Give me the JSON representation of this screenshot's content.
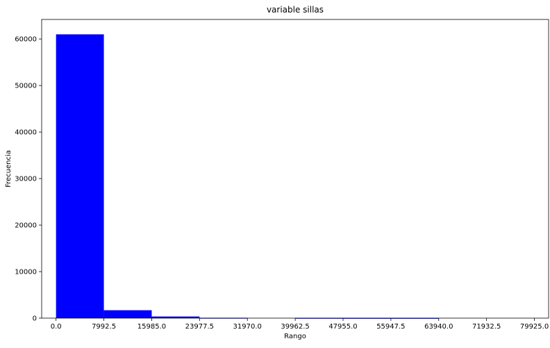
{
  "chart_data": {
    "type": "bar",
    "title": "variable sillas",
    "xlabel": "Rango",
    "ylabel": "Frecuencia",
    "bar_color": "#0000ff",
    "xlim": [
      -2400,
      82300
    ],
    "ylim": [
      0,
      64200
    ],
    "x_ticks": [
      0.0,
      7992.5,
      15985.0,
      23977.5,
      31970.0,
      39962.5,
      47955.0,
      55947.5,
      63940.0,
      71932.5,
      79925.0
    ],
    "x_tick_labels": [
      "0.0",
      "7992.5",
      "15985.0",
      "23977.5",
      "31970.0",
      "39962.5",
      "47955.0",
      "55947.5",
      "63940.0",
      "71932.5",
      "79925.0"
    ],
    "y_ticks": [
      0,
      10000,
      20000,
      30000,
      40000,
      50000,
      60000
    ],
    "y_tick_labels": [
      "0",
      "10000",
      "20000",
      "30000",
      "40000",
      "50000",
      "60000"
    ],
    "bins": [
      {
        "start": 0.0,
        "end": 7992.5,
        "count": 61000
      },
      {
        "start": 7992.5,
        "end": 15985.0,
        "count": 1700
      },
      {
        "start": 15985.0,
        "end": 23977.5,
        "count": 350
      },
      {
        "start": 23977.5,
        "end": 31970.0,
        "count": 80
      },
      {
        "start": 31970.0,
        "end": 39962.5,
        "count": 0
      },
      {
        "start": 39962.5,
        "end": 47955.0,
        "count": 60
      },
      {
        "start": 47955.0,
        "end": 55947.5,
        "count": 50
      },
      {
        "start": 55947.5,
        "end": 63940.0,
        "count": 50
      },
      {
        "start": 63940.0,
        "end": 71932.5,
        "count": 0
      },
      {
        "start": 71932.5,
        "end": 79925.0,
        "count": 0
      }
    ],
    "grid": false,
    "legend": "none"
  }
}
